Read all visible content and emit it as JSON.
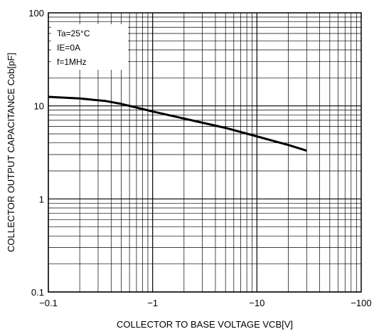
{
  "chart_data": {
    "type": "line",
    "xlabel": "COLLECTOR TO BASE VOLTAGE VCB[V]",
    "ylabel": "COLLECTOR OUTPUT CAPACITANCE Cob[pF]",
    "x_scale": "log",
    "y_scale": "log",
    "x_direction": "negative",
    "xlim": [
      -0.1,
      -100
    ],
    "ylim": [
      0.1,
      100
    ],
    "x_ticks": [
      -0.1,
      -1,
      -10,
      -100
    ],
    "x_tick_labels": [
      "−0.1",
      "−1",
      "−10",
      "−100"
    ],
    "y_ticks": [
      0.1,
      1,
      10,
      100
    ],
    "y_tick_labels": [
      "0.1",
      "1",
      "10",
      "100"
    ],
    "grid": true,
    "annotations": [
      "Ta=25°C",
      "IE=0A",
      "f=1MHz"
    ],
    "series": [
      {
        "x": [
          -0.1,
          -0.2,
          -0.35,
          -0.5,
          -0.7,
          -1,
          -2,
          -5,
          -10,
          -20,
          -30
        ],
        "y": [
          12.5,
          12.0,
          11.3,
          10.5,
          9.6,
          8.7,
          7.3,
          5.8,
          4.7,
          3.8,
          3.3
        ]
      }
    ]
  }
}
